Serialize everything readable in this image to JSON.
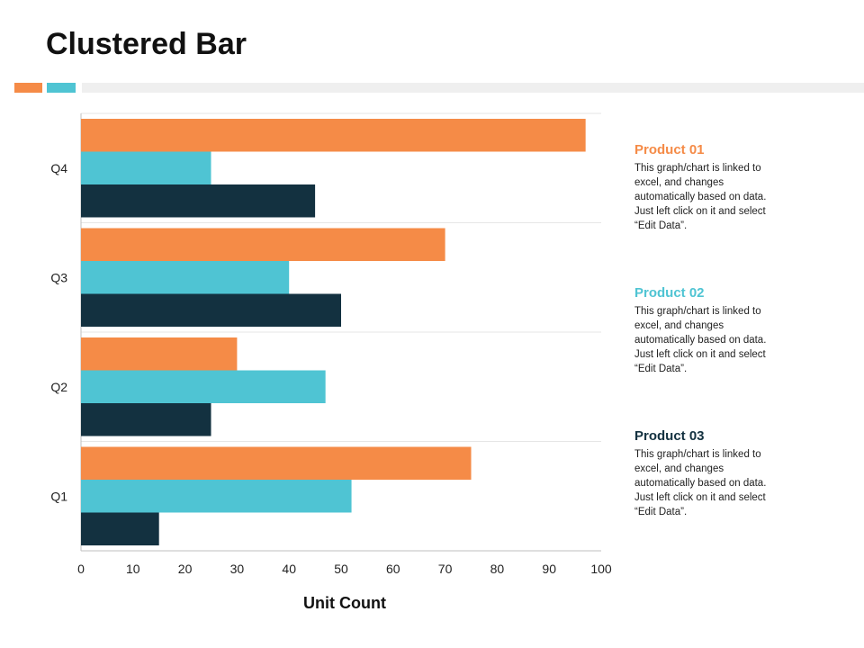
{
  "title": "Clustered Bar",
  "colors": {
    "series1": "#f58b47",
    "series2": "#4fc4d3",
    "series3": "#133140",
    "grid": "#e6e6e6",
    "axis": "#bfbfbf"
  },
  "chart_data": {
    "type": "bar",
    "orientation": "horizontal",
    "title": "Clustered Bar",
    "xlabel": "Unit Count",
    "ylabel": "",
    "xlim": [
      0,
      100
    ],
    "xticks": [
      "0",
      "10",
      "20",
      "30",
      "40",
      "50",
      "60",
      "70",
      "80",
      "90",
      "100"
    ],
    "categories": [
      "Q1",
      "Q2",
      "Q3",
      "Q4"
    ],
    "series": [
      {
        "name": "Product 01",
        "values": [
          75,
          30,
          70,
          97
        ]
      },
      {
        "name": "Product 02",
        "values": [
          52,
          47,
          40,
          25
        ]
      },
      {
        "name": "Product 03",
        "values": [
          15,
          25,
          50,
          45
        ]
      }
    ],
    "legend": "right"
  },
  "legend": [
    {
      "title": "Product 01",
      "text": "This graph/chart is linked to excel, and changes automatically based on data. Just left click on it and select “Edit Data”."
    },
    {
      "title": "Product 02",
      "text": "This graph/chart is linked to excel, and changes automatically based on data. Just left click on it and select “Edit Data”."
    },
    {
      "title": "Product 03",
      "text": "This graph/chart is linked to excel, and changes automatically based on data. Just left click on it and select “Edit Data”."
    }
  ]
}
